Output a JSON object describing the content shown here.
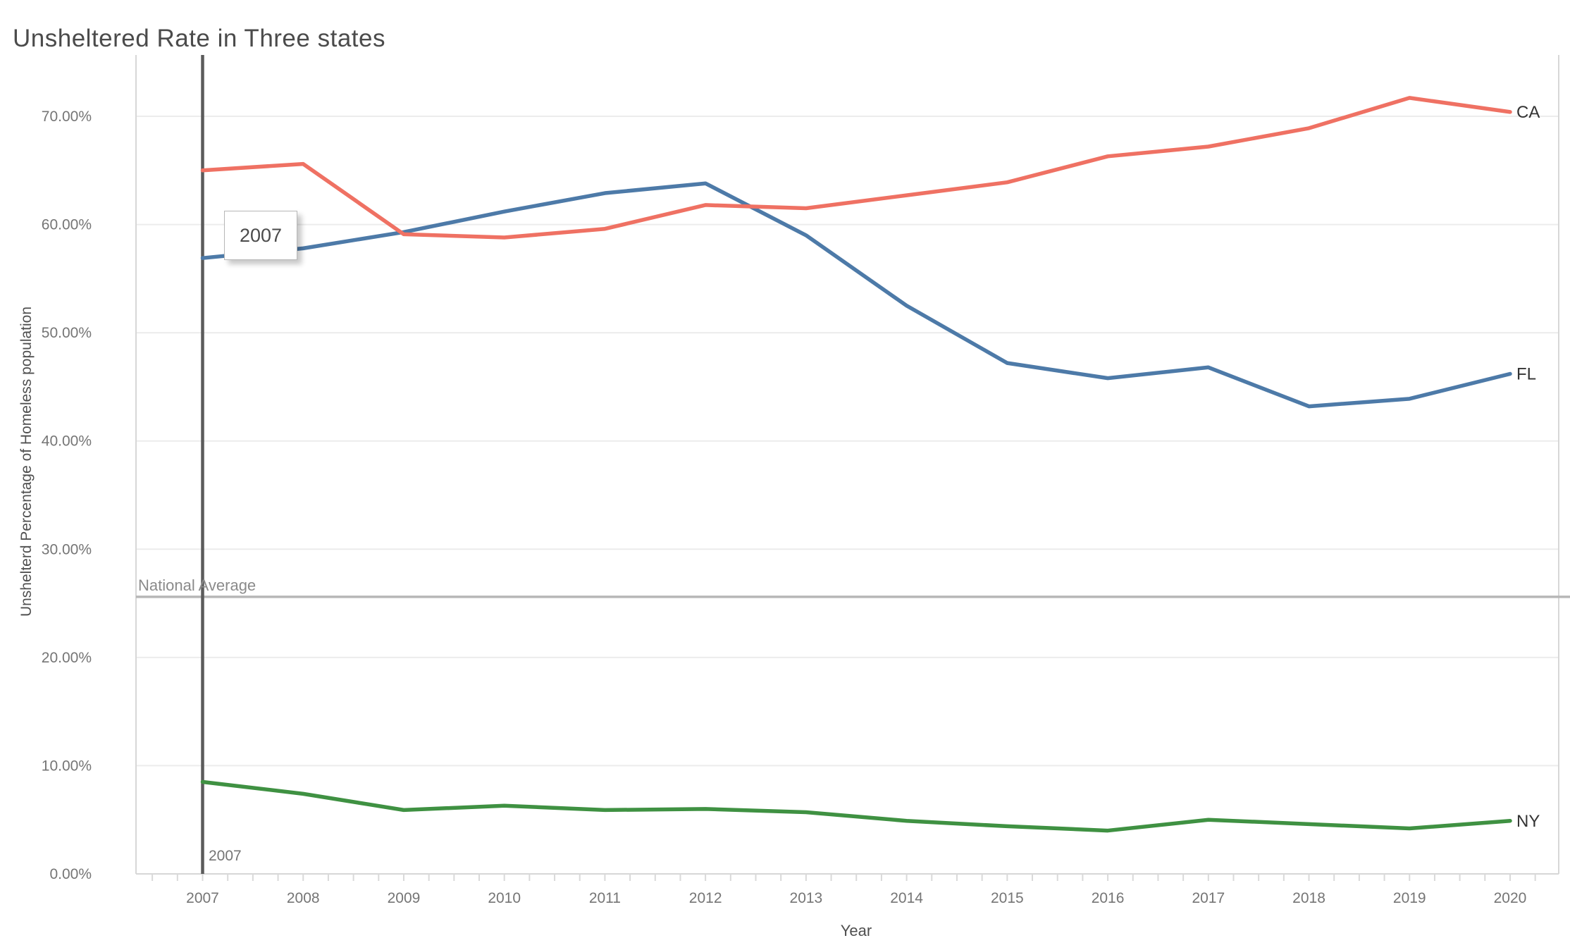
{
  "title": "Unsheltered Rate in Three states",
  "chart_data": {
    "type": "line",
    "title": "Unsheltered Rate in Three states",
    "xlabel": "Year",
    "ylabel": "Unshelterd Percentage of Homeless population",
    "x": [
      2007,
      2008,
      2009,
      2010,
      2011,
      2012,
      2013,
      2014,
      2015,
      2016,
      2017,
      2018,
      2019,
      2020
    ],
    "x_tick_labels": [
      "2007",
      "2008",
      "2009",
      "2010",
      "2011",
      "2012",
      "2013",
      "2014",
      "2015",
      "2016",
      "2017",
      "2018",
      "2019",
      "2020"
    ],
    "series": [
      {
        "name": "NY",
        "color": "#3F9142",
        "values": [
          8.5,
          7.4,
          5.9,
          6.3,
          5.9,
          6.0,
          5.7,
          4.9,
          4.4,
          4.0,
          5.0,
          4.6,
          4.2,
          4.9
        ]
      },
      {
        "name": "FL",
        "color": "#4D7AA8",
        "values": [
          56.9,
          57.8,
          59.3,
          61.2,
          62.9,
          63.8,
          59.0,
          52.5,
          47.2,
          45.8,
          46.8,
          43.2,
          43.9,
          46.2
        ]
      },
      {
        "name": "CA",
        "color": "#EF7163",
        "values": [
          65.0,
          65.6,
          59.1,
          58.8,
          59.6,
          61.8,
          61.5,
          62.7,
          63.9,
          66.3,
          67.2,
          68.9,
          71.7,
          70.4
        ]
      }
    ],
    "ylim": [
      0,
      70
    ],
    "yticks": [
      0,
      10,
      20,
      30,
      40,
      50,
      60,
      70
    ],
    "ytick_labels": [
      "0.00%",
      "10.00%",
      "20.00%",
      "30.00%",
      "40.00%",
      "50.00%",
      "60.00%",
      "70.00%"
    ],
    "grid": "horizontal",
    "legend_position": "line-end-labels",
    "annotations": {
      "national_average": {
        "label": "National Average",
        "value": 25.6,
        "color": "#B7B7B7"
      },
      "reference_line": {
        "x": 2007,
        "bottom_label": "2007",
        "tooltip": "2007",
        "color": "#5B5B5B"
      }
    }
  },
  "colors": {
    "grid": "#ECECEC",
    "plot_border": "#D7D7D7",
    "tick": "#D9D9D9",
    "axis_text": "#757575",
    "label_text": "#333333"
  }
}
